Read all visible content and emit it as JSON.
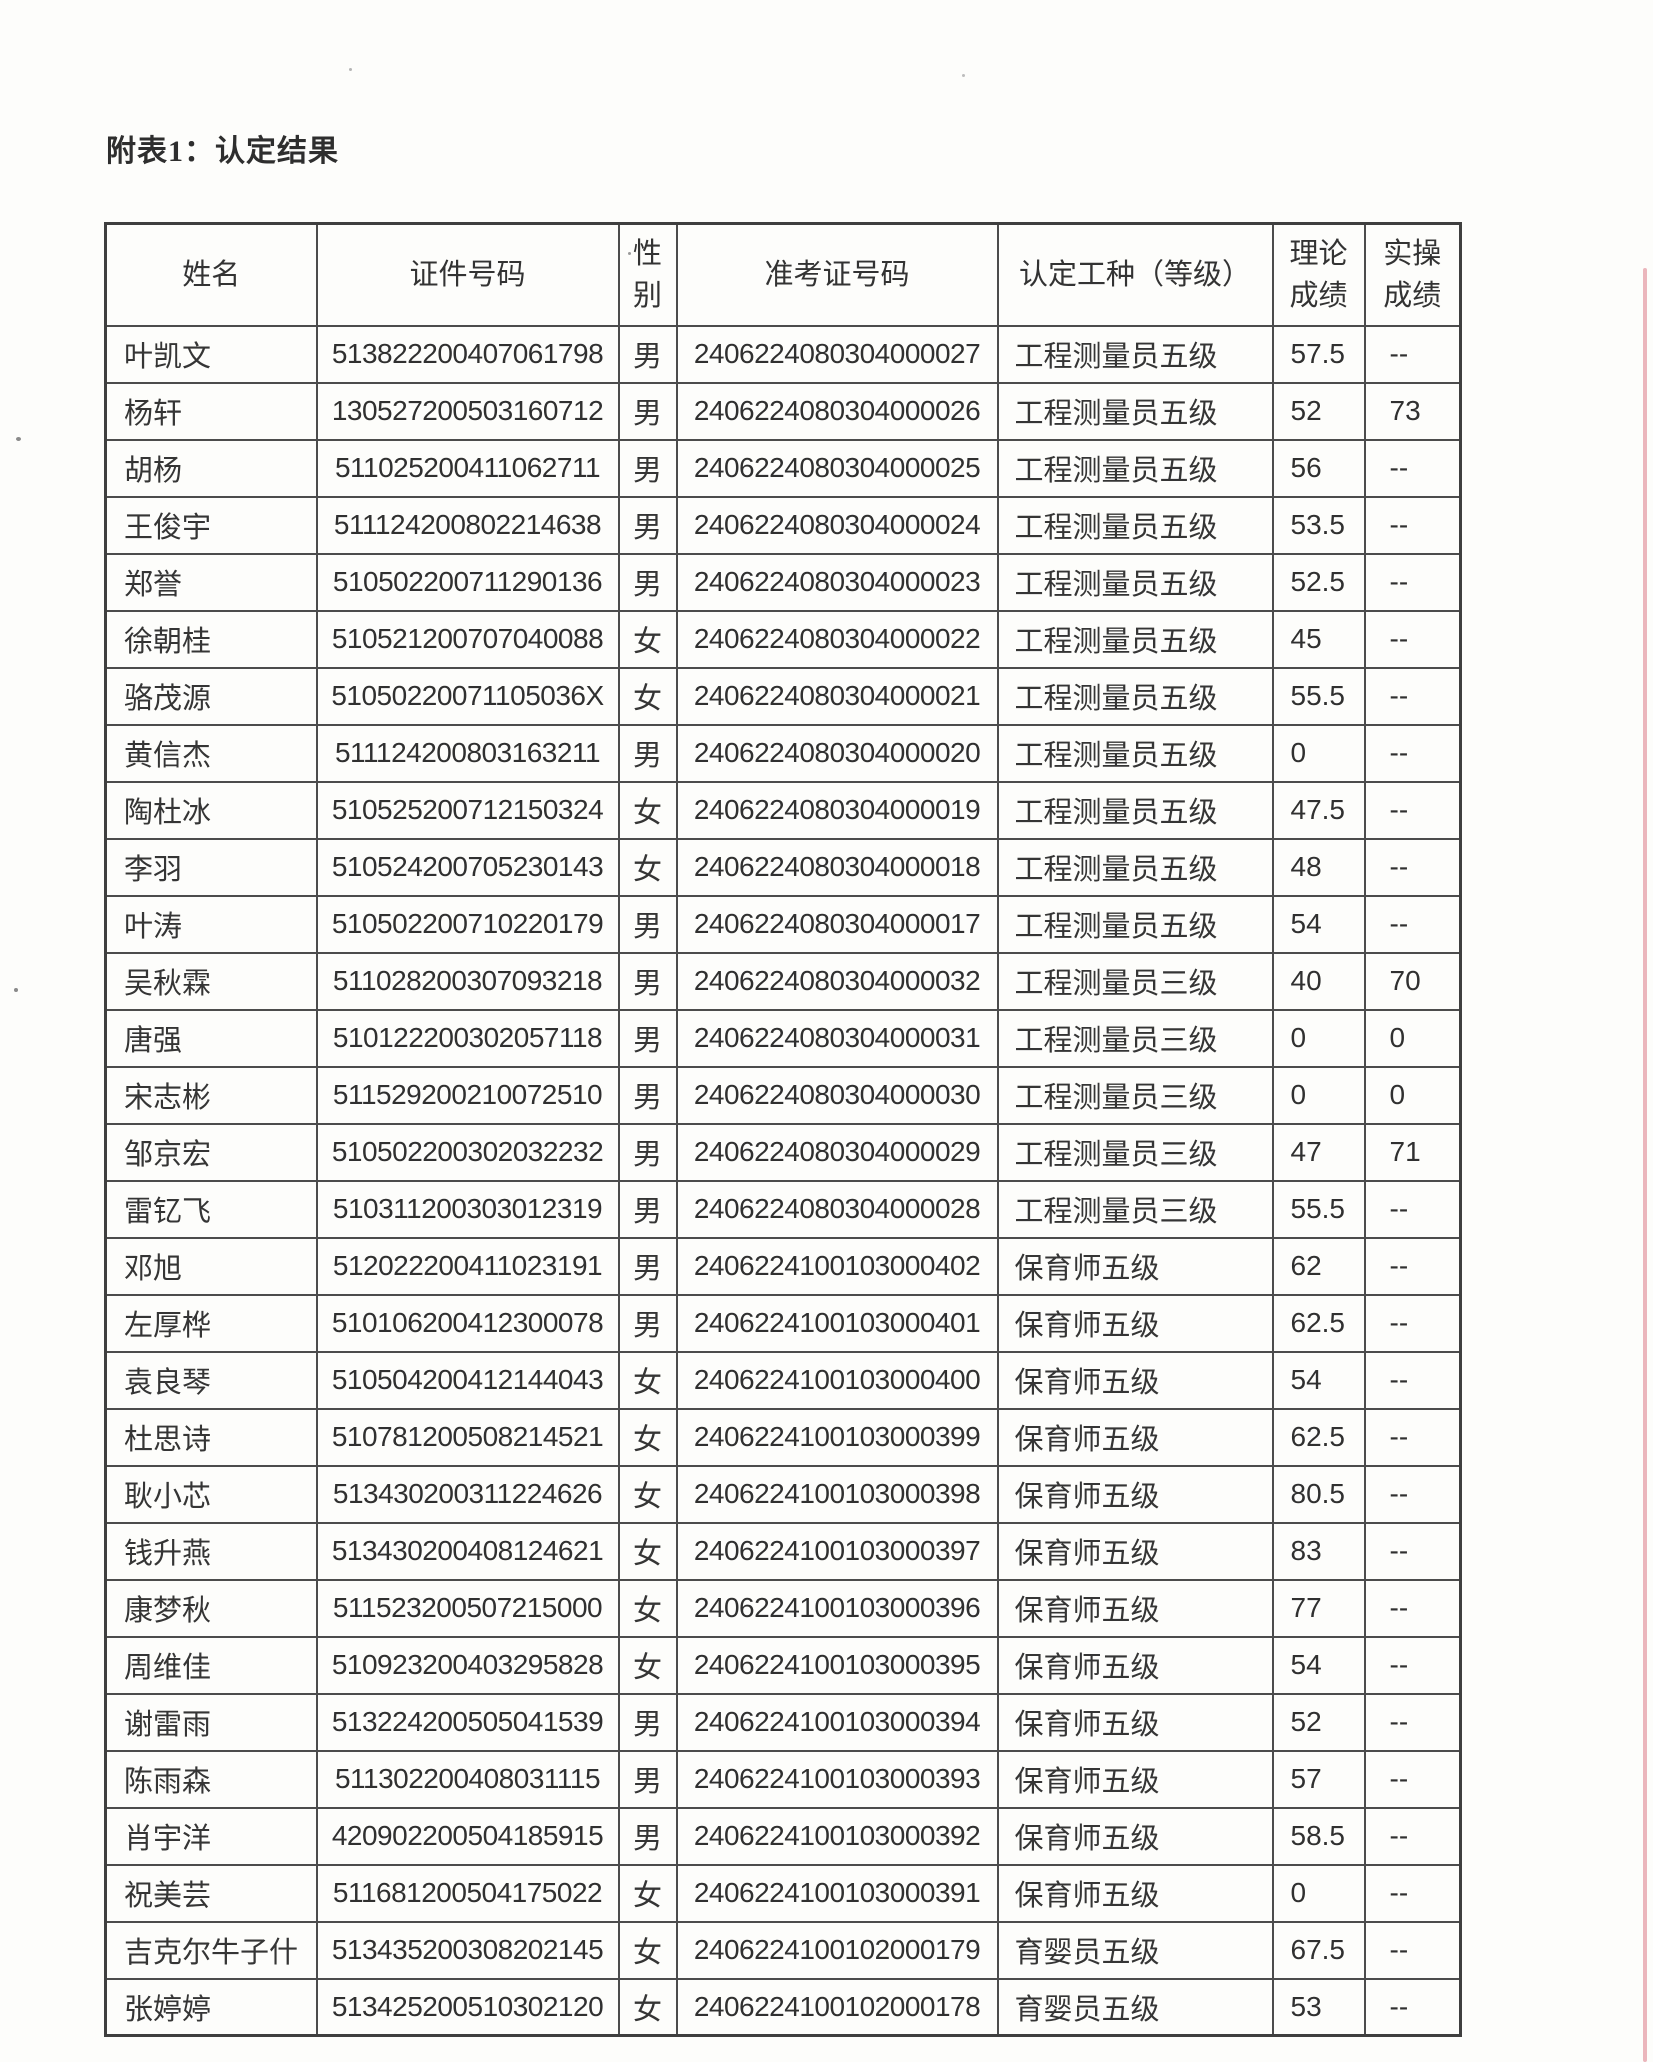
{
  "page": {
    "title": "附表1：认定结果"
  },
  "table": {
    "headers": [
      "姓名",
      "证件号码",
      "性别",
      "准考证号码",
      "认定工种（等级）",
      "理论成绩",
      "实操成绩"
    ],
    "rows": [
      [
        "叶凯文",
        "513822200407061798",
        "男",
        "2406224080304000027",
        "工程测量员五级",
        "57.5",
        "--"
      ],
      [
        "杨轩",
        "130527200503160712",
        "男",
        "2406224080304000026",
        "工程测量员五级",
        "52",
        "73"
      ],
      [
        "胡杨",
        "511025200411062711",
        "男",
        "2406224080304000025",
        "工程测量员五级",
        "56",
        "--"
      ],
      [
        "王俊宇",
        "511124200802214638",
        "男",
        "2406224080304000024",
        "工程测量员五级",
        "53.5",
        "--"
      ],
      [
        "郑誉",
        "510502200711290136",
        "男",
        "2406224080304000023",
        "工程测量员五级",
        "52.5",
        "--"
      ],
      [
        "徐朝桂",
        "510521200707040088",
        "女",
        "2406224080304000022",
        "工程测量员五级",
        "45",
        "--"
      ],
      [
        "骆茂源",
        "51050220071105036X",
        "女",
        "2406224080304000021",
        "工程测量员五级",
        "55.5",
        "--"
      ],
      [
        "黄信杰",
        "511124200803163211",
        "男",
        "2406224080304000020",
        "工程测量员五级",
        "0",
        "--"
      ],
      [
        "陶杜冰",
        "510525200712150324",
        "女",
        "2406224080304000019",
        "工程测量员五级",
        "47.5",
        "--"
      ],
      [
        "李羽",
        "510524200705230143",
        "女",
        "2406224080304000018",
        "工程测量员五级",
        "48",
        "--"
      ],
      [
        "叶涛",
        "510502200710220179",
        "男",
        "2406224080304000017",
        "工程测量员五级",
        "54",
        "--"
      ],
      [
        "吴秋霖",
        "511028200307093218",
        "男",
        "2406224080304000032",
        "工程测量员三级",
        "40",
        "70"
      ],
      [
        "唐强",
        "510122200302057118",
        "男",
        "2406224080304000031",
        "工程测量员三级",
        "0",
        "0"
      ],
      [
        "宋志彬",
        "511529200210072510",
        "男",
        "2406224080304000030",
        "工程测量员三级",
        "0",
        "0"
      ],
      [
        "邹京宏",
        "510502200302032232",
        "男",
        "2406224080304000029",
        "工程测量员三级",
        "47",
        "71"
      ],
      [
        "雷钇飞",
        "510311200303012319",
        "男",
        "2406224080304000028",
        "工程测量员三级",
        "55.5",
        "--"
      ],
      [
        "邓旭",
        "512022200411023191",
        "男",
        "2406224100103000402",
        "保育师五级",
        "62",
        "--"
      ],
      [
        "左厚桦",
        "510106200412300078",
        "男",
        "2406224100103000401",
        "保育师五级",
        "62.5",
        "--"
      ],
      [
        "袁良琴",
        "510504200412144043",
        "女",
        "2406224100103000400",
        "保育师五级",
        "54",
        "--"
      ],
      [
        "杜思诗",
        "510781200508214521",
        "女",
        "2406224100103000399",
        "保育师五级",
        "62.5",
        "--"
      ],
      [
        "耿小芯",
        "513430200311224626",
        "女",
        "2406224100103000398",
        "保育师五级",
        "80.5",
        "--"
      ],
      [
        "钱升燕",
        "513430200408124621",
        "女",
        "2406224100103000397",
        "保育师五级",
        "83",
        "--"
      ],
      [
        "康梦秋",
        "511523200507215000",
        "女",
        "2406224100103000396",
        "保育师五级",
        "77",
        "--"
      ],
      [
        "周维佳",
        "510923200403295828",
        "女",
        "2406224100103000395",
        "保育师五级",
        "54",
        "--"
      ],
      [
        "谢雷雨",
        "513224200505041539",
        "男",
        "2406224100103000394",
        "保育师五级",
        "52",
        "--"
      ],
      [
        "陈雨森",
        "511302200408031115",
        "男",
        "2406224100103000393",
        "保育师五级",
        "57",
        "--"
      ],
      [
        "肖宇洋",
        "420902200504185915",
        "男",
        "2406224100103000392",
        "保育师五级",
        "58.5",
        "--"
      ],
      [
        "祝美芸",
        "511681200504175022",
        "女",
        "2406224100103000391",
        "保育师五级",
        "0",
        "--"
      ],
      [
        "吉克尔牛子什",
        "513435200308202145",
        "女",
        "2406224100102000179",
        "育婴员五级",
        "67.5",
        "--"
      ],
      [
        "张婷婷",
        "513425200510302120",
        "女",
        "2406224100102000178",
        "育婴员五级",
        "53",
        "--"
      ]
    ]
  },
  "artifacts": {
    "scan_edge_color": "#dd7b88"
  }
}
